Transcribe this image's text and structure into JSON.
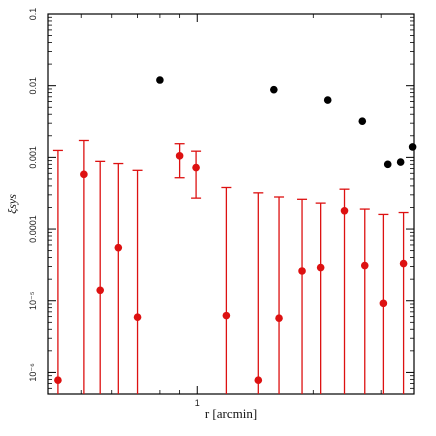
{
  "chart_data": {
    "type": "scatter",
    "title": "",
    "xlabel": "r [arcmin]",
    "ylabel": "ξsys",
    "xscale": "log",
    "yscale": "log",
    "xlim": [
      0.41,
      3.65
    ],
    "ylim": [
      5e-07,
      0.1
    ],
    "x_ticks": [
      {
        "value": 1,
        "label": "1"
      }
    ],
    "y_ticks": [
      {
        "value": 0.1,
        "label": "0.1"
      },
      {
        "value": 0.01,
        "label": "0.01"
      },
      {
        "value": 0.001,
        "label": "0.001"
      },
      {
        "value": 0.0001,
        "label": "0.0001"
      },
      {
        "value": 1e-05,
        "label": "10⁻⁵"
      },
      {
        "value": 1e-06,
        "label": "10⁻⁶"
      }
    ],
    "grid": false,
    "series": [
      {
        "color": "#000000",
        "errorbars": false,
        "points": [
          {
            "x": 0.8,
            "y": 0.012
          },
          {
            "x": 1.58,
            "y": 0.0088
          },
          {
            "x": 2.18,
            "y": 0.0063
          },
          {
            "x": 2.68,
            "y": 0.0032
          },
          {
            "x": 3.12,
            "y": 0.0008
          },
          {
            "x": 3.37,
            "y": 0.00086
          },
          {
            "x": 3.62,
            "y": 0.0014
          }
        ]
      },
      {
        "color": "#dd1111",
        "errorbars": true,
        "points": [
          {
            "x": 0.435,
            "y": 7.8e-07,
            "ylow": 5e-07,
            "yhigh": 0.00125
          },
          {
            "x": 0.508,
            "y": 0.00058,
            "ylow": 5e-07,
            "yhigh": 0.00172
          },
          {
            "x": 0.56,
            "y": 1.4e-05,
            "ylow": 5e-07,
            "yhigh": 0.00088
          },
          {
            "x": 0.624,
            "y": 5.5e-05,
            "ylow": 5e-07,
            "yhigh": 0.00082
          },
          {
            "x": 0.7,
            "y": 5.9e-06,
            "ylow": 5e-07,
            "yhigh": 0.00066
          },
          {
            "x": 0.9,
            "y": 0.00105,
            "ylow": 0.00052,
            "yhigh": 0.00155
          },
          {
            "x": 0.993,
            "y": 0.00072,
            "ylow": 0.00027,
            "yhigh": 0.00122
          },
          {
            "x": 1.19,
            "y": 6.2e-06,
            "ylow": 5e-07,
            "yhigh": 0.00038
          },
          {
            "x": 1.44,
            "y": 7.8e-07,
            "ylow": 5e-07,
            "yhigh": 0.00032
          },
          {
            "x": 1.63,
            "y": 5.7e-06,
            "ylow": 5e-07,
            "yhigh": 0.00028
          },
          {
            "x": 1.87,
            "y": 2.6e-05,
            "ylow": 5e-07,
            "yhigh": 0.00026
          },
          {
            "x": 2.09,
            "y": 2.9e-05,
            "ylow": 5e-07,
            "yhigh": 0.00023
          },
          {
            "x": 2.41,
            "y": 0.00018,
            "ylow": 5e-07,
            "yhigh": 0.00036
          },
          {
            "x": 2.72,
            "y": 3.1e-05,
            "ylow": 5e-07,
            "yhigh": 0.00019
          },
          {
            "x": 3.04,
            "y": 9.2e-06,
            "ylow": 5e-07,
            "yhigh": 0.00016
          },
          {
            "x": 3.43,
            "y": 3.3e-05,
            "ylow": 5e-07,
            "yhigh": 0.00017
          }
        ]
      }
    ]
  }
}
